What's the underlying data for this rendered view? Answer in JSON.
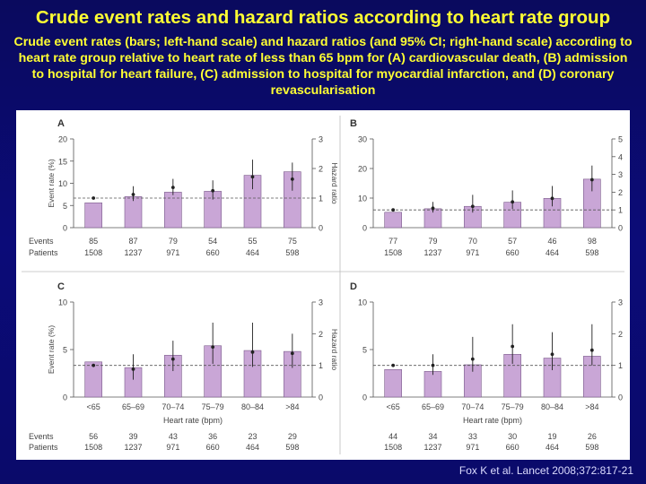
{
  "title": "Crude event rates and hazard ratios according to heart rate group",
  "subtitle": "Crude event rates (bars; left-hand scale) and hazard ratios (and 95% CI; right-hand scale) according to heart rate group relative to heart rate of less than 65 bpm for (A) cardiovascular death, (B) admission to hospital for heart failure, (C) admission to hospital for myocardial infarction, and (D) coronary revascularisation",
  "citation": "Fox K et al. Lancet 2008;372:817-21",
  "row_labels": {
    "events": "Events",
    "patients": "Patients"
  },
  "colors": {
    "bar": "#c9a6d6",
    "bar_stroke": "#7a5a8a",
    "point": "#222222",
    "axis": "#555555",
    "ref_line": "#555555",
    "title": "#ffff33"
  },
  "chart_data": [
    {
      "panel": "A",
      "type": "bar",
      "categories": [
        "<65",
        "65–69",
        "70–74",
        "75–79",
        "80–84",
        ">84"
      ],
      "show_categories": false,
      "values": [
        5.6,
        7.0,
        8.0,
        8.2,
        11.8,
        12.6
      ],
      "ylabel": "Event rate (%)",
      "ylim": [
        0,
        20
      ],
      "yticks": [
        0,
        5,
        10,
        15,
        20
      ],
      "hr_label": "Hazard ratio",
      "hr_ylim": [
        0,
        3
      ],
      "hr_ticks": [
        0,
        1,
        2,
        3
      ],
      "hazard_ratio": [
        1.0,
        1.12,
        1.36,
        1.25,
        1.72,
        1.64
      ],
      "hr_ci_low": [
        1.0,
        0.9,
        1.1,
        0.95,
        1.3,
        1.25
      ],
      "hr_ci_high": [
        1.0,
        1.4,
        1.65,
        1.6,
        2.3,
        2.2
      ],
      "events": [
        "85",
        "87",
        "79",
        "54",
        "55",
        "75"
      ],
      "patients": [
        "1508",
        "1237",
        "971",
        "660",
        "464",
        "598"
      ],
      "xlabel": ""
    },
    {
      "panel": "B",
      "type": "bar",
      "categories": [
        "<65",
        "65–69",
        "70–74",
        "75–79",
        "80–84",
        ">84"
      ],
      "show_categories": false,
      "values": [
        5.2,
        6.4,
        7.2,
        8.6,
        9.9,
        16.4
      ],
      "ylabel": "",
      "ylim": [
        0,
        30
      ],
      "yticks": [
        0,
        10,
        20,
        30
      ],
      "hr_label": "",
      "hr_ylim": [
        0,
        5
      ],
      "hr_ticks": [
        0,
        1,
        2,
        3,
        4,
        5
      ],
      "hazard_ratio": [
        1.0,
        1.1,
        1.2,
        1.45,
        1.65,
        2.7
      ],
      "hr_ci_low": [
        1.0,
        0.85,
        0.85,
        1.05,
        1.2,
        2.05
      ],
      "hr_ci_high": [
        1.0,
        1.45,
        1.85,
        2.1,
        2.35,
        3.5
      ],
      "events": [
        "77",
        "79",
        "70",
        "57",
        "46",
        "98"
      ],
      "patients": [
        "1508",
        "1237",
        "971",
        "660",
        "464",
        "598"
      ],
      "xlabel": ""
    },
    {
      "panel": "C",
      "type": "bar",
      "categories": [
        "<65",
        "65–69",
        "70–74",
        "75–79",
        "80–84",
        ">84"
      ],
      "show_categories": true,
      "values": [
        3.7,
        3.1,
        4.4,
        5.4,
        4.9,
        4.8
      ],
      "ylabel": "Event rate (%)",
      "ylim": [
        0,
        10
      ],
      "yticks": [
        0,
        5,
        10
      ],
      "hr_label": "Hazard ratio",
      "hr_ylim": [
        0,
        3
      ],
      "hr_ticks": [
        0,
        1,
        2,
        3
      ],
      "hazard_ratio": [
        1.0,
        0.88,
        1.2,
        1.58,
        1.42,
        1.38
      ],
      "hr_ci_low": [
        1.0,
        0.55,
        0.82,
        1.05,
        0.95,
        0.92
      ],
      "hr_ci_high": [
        1.0,
        1.35,
        1.78,
        2.35,
        2.35,
        2.0
      ],
      "events": [
        "56",
        "39",
        "43",
        "36",
        "23",
        "29"
      ],
      "patients": [
        "1508",
        "1237",
        "971",
        "660",
        "464",
        "598"
      ],
      "xlabel": "Heart rate (bpm)"
    },
    {
      "panel": "D",
      "type": "bar",
      "categories": [
        "<65",
        "65–69",
        "70–74",
        "75–79",
        "80–84",
        ">84"
      ],
      "show_categories": true,
      "values": [
        2.9,
        2.7,
        3.4,
        4.5,
        4.1,
        4.3
      ],
      "ylabel": "",
      "ylim": [
        0,
        10
      ],
      "yticks": [
        0,
        5,
        10
      ],
      "hr_label": "",
      "hr_ylim": [
        0,
        3
      ],
      "hr_ticks": [
        0,
        1,
        2,
        3
      ],
      "hazard_ratio": [
        1.0,
        1.0,
        1.2,
        1.6,
        1.35,
        1.48
      ],
      "hr_ci_low": [
        1.0,
        0.7,
        0.8,
        1.05,
        0.85,
        1.0
      ],
      "hr_ci_high": [
        1.0,
        1.35,
        1.9,
        2.3,
        2.05,
        2.3
      ],
      "events": [
        "44",
        "34",
        "33",
        "30",
        "19",
        "26"
      ],
      "patients": [
        "1508",
        "1237",
        "971",
        "660",
        "464",
        "598"
      ],
      "xlabel": "Heart rate (bpm)"
    }
  ]
}
